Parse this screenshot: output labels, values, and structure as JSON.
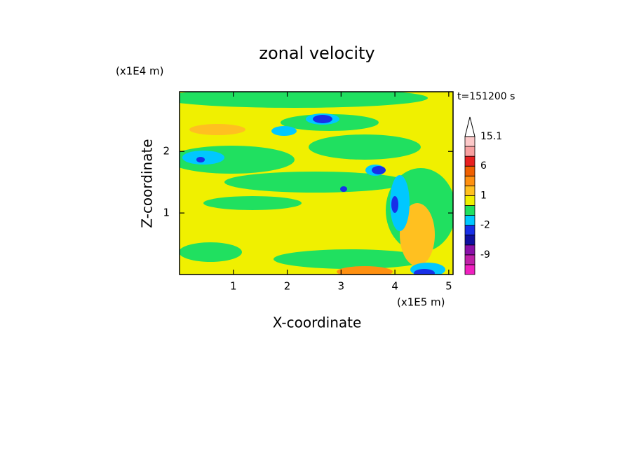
{
  "chart_data": {
    "type": "contour",
    "title": "zonal velocity",
    "xlabel": "X-coordinate",
    "ylabel": "Z-coordinate",
    "xunit": "(x1E5 m)",
    "yunit": "(x1E4 m)",
    "annotation": "t=151200 s",
    "xlim": [
      0,
      5.08
    ],
    "xticks": [
      1,
      2,
      3,
      4,
      5
    ],
    "ylim": [
      0,
      2.97
    ],
    "yticks": [
      1,
      2
    ],
    "colorbar": {
      "levels": [
        -15,
        -12,
        -9,
        -6,
        -4,
        -2,
        -1,
        0,
        1,
        2,
        4,
        6,
        9,
        12,
        15.1
      ],
      "colors": [
        "#f020c0",
        "#c020a8",
        "#8a10a8",
        "#1010a0",
        "#1830e8",
        "#00c8ff",
        "#20e060",
        "#f0f000",
        "#ffc020",
        "#ff9010",
        "#f06000",
        "#e82020",
        "#f8a0a0",
        "#fcc8c8"
      ],
      "ticks": [
        -9,
        -2,
        1,
        6,
        15.1
      ]
    }
  }
}
